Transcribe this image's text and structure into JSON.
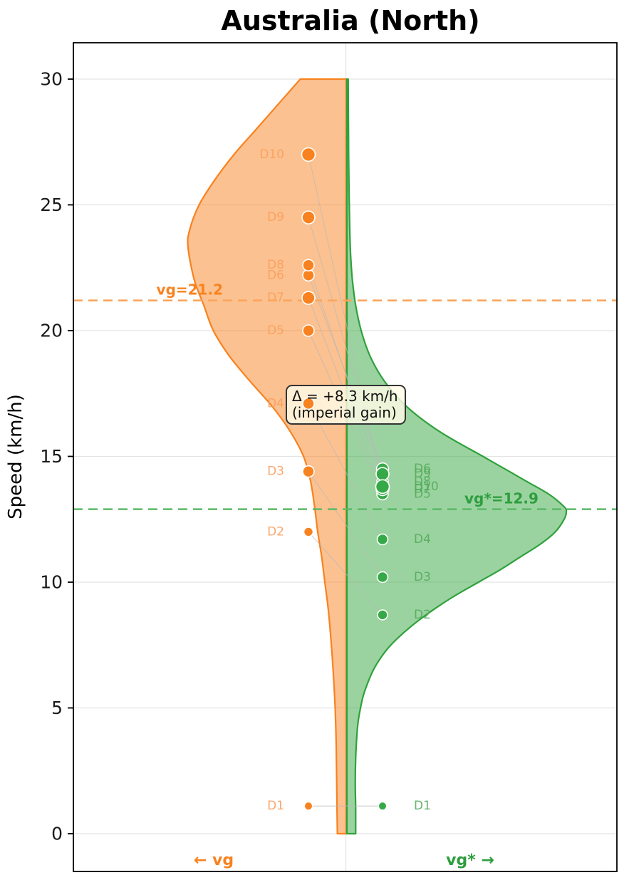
{
  "title": "Australia (North)",
  "y_axis": {
    "label": "Speed (km/h)",
    "ticks": [
      0,
      5,
      10,
      15,
      20,
      25,
      30
    ],
    "lim": [
      0,
      30
    ]
  },
  "bottom_labels": {
    "left": "← vg",
    "right": "vg* →"
  },
  "annotation": {
    "line1": "Δ = +8.3 km/h",
    "line2": "(imperial gain)",
    "delta_kmh": 8.3
  },
  "colors": {
    "orange_point": "#f8821f",
    "orange_fill_base": "#f98322",
    "orange_dash": "#fba55c",
    "orange_label": "#f99e5c",
    "green_point": "#35a947",
    "green_fill_base": "#35a842",
    "green_dash": "#5bb968",
    "green_label": "#55ab5d",
    "grid": "#e3e3e3",
    "connector": "#b8b8b8",
    "annotation_bg": "#fffbe6",
    "annotation_border": "#333333"
  },
  "chart_data": {
    "type": "violin",
    "title": "Australia (North)",
    "ylabel": "Speed (km/h)",
    "ylim": [
      0,
      30
    ],
    "yticks": [
      0,
      5,
      10,
      15,
      20,
      25,
      30
    ],
    "grid": true,
    "series": [
      {
        "name": "vg",
        "side": "left",
        "mean_label": "vg=21.2",
        "mean_value": 21.2,
        "axis_label": "← vg",
        "points": [
          {
            "label": "D1",
            "value": 1.1,
            "r": 5.5
          },
          {
            "label": "D2",
            "value": 12.0,
            "r": 6.5
          },
          {
            "label": "D3",
            "value": 14.4,
            "r": 8
          },
          {
            "label": "D4",
            "value": 17.1,
            "r": 8
          },
          {
            "label": "D5",
            "value": 20.0,
            "r": 8
          },
          {
            "label": "D6",
            "value": 22.2,
            "r": 8
          },
          {
            "label": "D7",
            "value": 21.3,
            "r": 9
          },
          {
            "label": "D8",
            "value": 22.6,
            "r": 8
          },
          {
            "label": "D9",
            "value": 24.5,
            "r": 9
          },
          {
            "label": "D10",
            "value": 27.0,
            "r": 9.5
          }
        ],
        "violin_profile": [
          [
            30,
            0.29
          ],
          [
            29,
            0.43
          ],
          [
            28,
            0.57
          ],
          [
            27,
            0.71
          ],
          [
            26,
            0.83
          ],
          [
            25,
            0.93
          ],
          [
            24,
            0.99
          ],
          [
            23.3,
            1.0
          ],
          [
            22,
            0.96
          ],
          [
            21,
            0.9
          ],
          [
            20,
            0.84
          ],
          [
            19,
            0.74
          ],
          [
            18,
            0.61
          ],
          [
            17,
            0.47
          ],
          [
            16,
            0.355
          ],
          [
            15,
            0.27
          ],
          [
            14,
            0.225
          ],
          [
            13,
            0.2
          ],
          [
            12,
            0.18
          ],
          [
            11,
            0.155
          ],
          [
            10,
            0.135
          ],
          [
            9,
            0.115
          ],
          [
            8,
            0.1
          ],
          [
            7,
            0.088
          ],
          [
            6,
            0.078
          ],
          [
            5,
            0.07
          ],
          [
            4,
            0.065
          ],
          [
            3,
            0.062
          ],
          [
            2,
            0.06
          ],
          [
            1,
            0.058
          ],
          [
            0,
            0.056
          ]
        ]
      },
      {
        "name": "vg*",
        "side": "right",
        "mean_label": "vg*=12.9",
        "mean_value": 12.9,
        "axis_label": "vg* →",
        "points": [
          {
            "label": "D1",
            "value": 1.1,
            "r": 5.5
          },
          {
            "label": "D2",
            "value": 8.7,
            "r": 7
          },
          {
            "label": "D3",
            "value": 10.2,
            "r": 7.5
          },
          {
            "label": "D4",
            "value": 11.7,
            "r": 7.5
          },
          {
            "label": "D5",
            "value": 13.5,
            "r": 8
          },
          {
            "label": "D6",
            "value": 14.5,
            "r": 8.5
          },
          {
            "label": "D7",
            "value": 13.7,
            "r": 9
          },
          {
            "label": "D8",
            "value": 14.0,
            "r": 8
          },
          {
            "label": "D9",
            "value": 14.3,
            "r": 9
          },
          {
            "label": "D10",
            "value": 13.8,
            "r": 9.5
          }
        ],
        "violin_profile": [
          [
            30,
            0.006
          ],
          [
            28,
            0.007
          ],
          [
            26,
            0.009
          ],
          [
            24,
            0.013
          ],
          [
            23,
            0.017
          ],
          [
            22,
            0.025
          ],
          [
            21,
            0.04
          ],
          [
            20,
            0.065
          ],
          [
            19,
            0.105
          ],
          [
            18,
            0.17
          ],
          [
            17,
            0.27
          ],
          [
            16,
            0.42
          ],
          [
            15,
            0.62
          ],
          [
            14.5,
            0.72
          ],
          [
            14,
            0.82
          ],
          [
            13.5,
            0.92
          ],
          [
            13,
            0.99
          ],
          [
            12.8,
            1.0
          ],
          [
            12.5,
            0.99
          ],
          [
            12,
            0.95
          ],
          [
            11.5,
            0.88
          ],
          [
            11,
            0.79
          ],
          [
            10.5,
            0.7
          ],
          [
            10,
            0.6
          ],
          [
            9.5,
            0.5
          ],
          [
            9,
            0.41
          ],
          [
            8.5,
            0.33
          ],
          [
            8,
            0.26
          ],
          [
            7.5,
            0.2
          ],
          [
            7,
            0.155
          ],
          [
            6.5,
            0.12
          ],
          [
            6,
            0.095
          ],
          [
            5.5,
            0.075
          ],
          [
            5,
            0.062
          ],
          [
            4.5,
            0.052
          ],
          [
            4,
            0.046
          ],
          [
            3,
            0.04
          ],
          [
            2,
            0.038
          ],
          [
            1,
            0.04
          ],
          [
            0,
            0.04
          ]
        ]
      }
    ],
    "annotation": {
      "line1": "Δ = +8.3 km/h",
      "line2": "(imperial gain)"
    }
  }
}
